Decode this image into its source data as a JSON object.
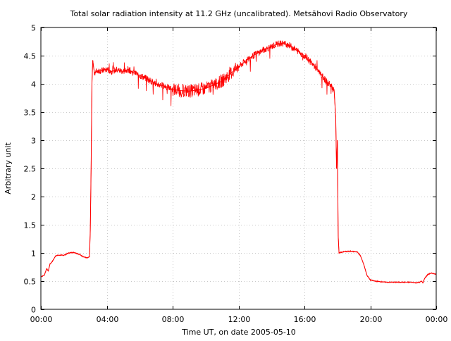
{
  "chart_data": {
    "type": "line",
    "title": "Total solar radiation intensity at 11.2 GHz (uncalibrated). Metsähovi Radio Observatory",
    "xlabel": "Time UT, on date 2005-05-10",
    "ylabel": "Arbitrary unit",
    "x_unit": "hours UT",
    "xlim": [
      0,
      24
    ],
    "ylim": [
      0,
      5
    ],
    "grid": true,
    "legend": "none",
    "x_ticks": [
      {
        "value": 0,
        "label": "00:00"
      },
      {
        "value": 4,
        "label": "04:00"
      },
      {
        "value": 8,
        "label": "08:00"
      },
      {
        "value": 12,
        "label": "12:00"
      },
      {
        "value": 16,
        "label": "16:00"
      },
      {
        "value": 20,
        "label": "20:00"
      },
      {
        "value": 24,
        "label": "00:00"
      }
    ],
    "y_ticks": [
      {
        "value": 0,
        "label": "0"
      },
      {
        "value": 0.5,
        "label": "0.5"
      },
      {
        "value": 1,
        "label": "1"
      },
      {
        "value": 1.5,
        "label": "1.5"
      },
      {
        "value": 2,
        "label": "2"
      },
      {
        "value": 2.5,
        "label": "2.5"
      },
      {
        "value": 3,
        "label": "3"
      },
      {
        "value": 3.5,
        "label": "3.5"
      },
      {
        "value": 4,
        "label": "4"
      },
      {
        "value": 4.5,
        "label": "4.5"
      },
      {
        "value": 5,
        "label": "5"
      }
    ],
    "series": [
      {
        "color": "#ff0000",
        "x": [
          0,
          0.2,
          0.35,
          0.45,
          0.55,
          0.7,
          0.9,
          1.1,
          1.4,
          1.7,
          2.0,
          2.3,
          2.6,
          2.8,
          2.95,
          3.0,
          3.05,
          3.1,
          3.15,
          3.2,
          3.25,
          3.35,
          3.5,
          3.7,
          4.0,
          4.3,
          4.6,
          5.0,
          5.3,
          5.6,
          6.0,
          6.5,
          7.0,
          7.5,
          8.0,
          8.5,
          9.0,
          9.5,
          10.0,
          10.5,
          11.0,
          11.5,
          12.0,
          12.5,
          13.0,
          13.5,
          14.0,
          14.3,
          14.6,
          15.0,
          15.5,
          16.0,
          16.5,
          17.0,
          17.3,
          17.6,
          17.8,
          17.9,
          17.95,
          18.0,
          18.05,
          18.1,
          18.2,
          18.4,
          18.8,
          19.2,
          19.4,
          19.6,
          19.8,
          20.0,
          20.3,
          20.6,
          21.0,
          21.5,
          22.0,
          22.5,
          22.8,
          23.0,
          23.1,
          23.2,
          23.3,
          23.5,
          23.7,
          23.9,
          24.0
        ],
        "y": [
          0.58,
          0.6,
          0.72,
          0.68,
          0.8,
          0.85,
          0.95,
          0.96,
          0.96,
          1.0,
          1.01,
          0.98,
          0.93,
          0.91,
          0.93,
          1.4,
          2.5,
          4.0,
          4.42,
          4.3,
          4.2,
          4.22,
          4.24,
          4.23,
          4.26,
          4.22,
          4.25,
          4.22,
          4.26,
          4.2,
          4.15,
          4.08,
          4.0,
          3.96,
          3.9,
          3.88,
          3.87,
          3.89,
          3.92,
          3.98,
          4.05,
          4.18,
          4.3,
          4.42,
          4.52,
          4.6,
          4.66,
          4.7,
          4.72,
          4.7,
          4.6,
          4.5,
          4.35,
          4.18,
          4.05,
          3.98,
          3.9,
          3.4,
          2.5,
          3.0,
          1.3,
          1.0,
          1.01,
          1.02,
          1.03,
          1.02,
          0.95,
          0.8,
          0.6,
          0.52,
          0.5,
          0.49,
          0.48,
          0.48,
          0.48,
          0.48,
          0.47,
          0.48,
          0.5,
          0.47,
          0.55,
          0.62,
          0.64,
          0.63,
          0.62
        ]
      }
    ]
  }
}
